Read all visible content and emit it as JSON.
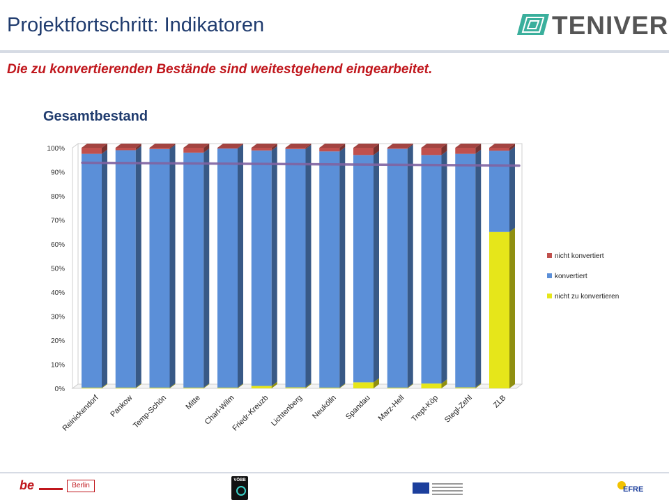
{
  "header": {
    "title": "Projektfortschritt: Indikatoren",
    "logo_text": "TENIVER"
  },
  "subtitle": "Die zu konvertierenden Bestände sind weitestgehend eingearbeitet.",
  "chart_title": "Gesamtbestand",
  "chart_data": {
    "type": "bar",
    "stacked": true,
    "three_d": true,
    "title": "Gesamtbestand",
    "categories": [
      "Reinickendorf",
      "Pankow",
      "Temp-Schön",
      "Mitte",
      "Charl-Wilm",
      "Friedr-Kreuzb",
      "Lichtenberg",
      "Neukölln",
      "Spandau",
      "Marz-Hell",
      "Trept-Köp",
      "Stegl-Zehl",
      "ZLB"
    ],
    "series": [
      {
        "name": "nicht zu konvertieren",
        "color": "#e6e61a",
        "values": [
          0.3,
          0.3,
          0.3,
          0.3,
          0.3,
          1.0,
          0.4,
          0.3,
          2.5,
          0.3,
          2.0,
          0.4,
          65.0
        ]
      },
      {
        "name": "konvertiert",
        "color": "#5b8fd8",
        "values": [
          97.2,
          98.7,
          99.2,
          97.7,
          99.4,
          97.9,
          99.1,
          98.2,
          94.5,
          99.3,
          95.0,
          97.1,
          33.8
        ]
      },
      {
        "name": "nicht konvertiert",
        "color": "#c0504d",
        "values": [
          2.5,
          1.0,
          0.5,
          2.0,
          0.3,
          1.1,
          0.5,
          1.5,
          3.0,
          0.4,
          3.0,
          2.5,
          1.2
        ]
      }
    ],
    "target_line": {
      "color": "#8064a2",
      "start": 93.8,
      "end": 92.6
    },
    "yticks": [
      "0%",
      "10%",
      "20%",
      "30%",
      "40%",
      "50%",
      "60%",
      "70%",
      "80%",
      "90%",
      "100%"
    ],
    "ylim": [
      0,
      100
    ],
    "legend_position": "right"
  },
  "footer": {
    "berlin_prefix": "be",
    "berlin_label": "Berlin",
    "voebb_label": "VÖBB",
    "efre_label": "EFRE"
  }
}
